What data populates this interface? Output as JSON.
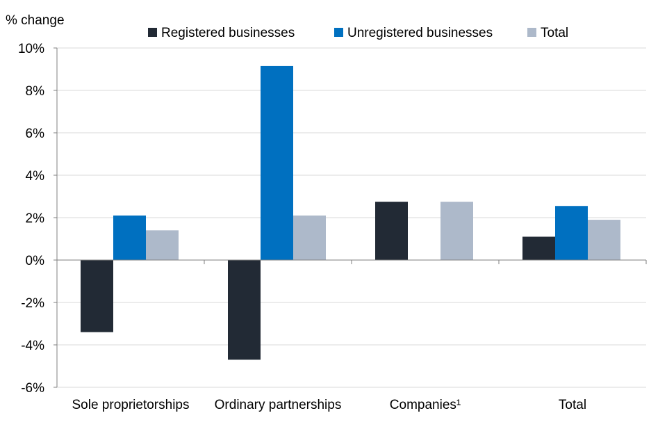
{
  "chart_data": {
    "type": "bar",
    "title": "",
    "ylabel": "% change",
    "xlabel": "",
    "ylim": [
      -6,
      10
    ],
    "ytick_values": [
      10,
      8,
      6,
      4,
      2,
      0,
      -2,
      -4,
      -6
    ],
    "ytick_labels": [
      "10%",
      "8%",
      "6%",
      "4%",
      "2%",
      "0%",
      "-2%",
      "-4%",
      "-6%"
    ],
    "categories": [
      "Sole proprietorships",
      "Ordinary partnerships",
      "Companies¹",
      "Total"
    ],
    "series": [
      {
        "name": "Registered businesses",
        "color": "#222a35",
        "values": [
          -3.4,
          -4.7,
          2.75,
          1.1
        ]
      },
      {
        "name": "Unregistered businesses",
        "color": "#0070c0",
        "values": [
          2.1,
          9.15,
          null,
          2.55
        ]
      },
      {
        "name": "Total",
        "color": "#adb9ca",
        "values": [
          1.4,
          2.1,
          2.75,
          1.9
        ]
      }
    ],
    "legend_position": "top",
    "grid": true
  }
}
